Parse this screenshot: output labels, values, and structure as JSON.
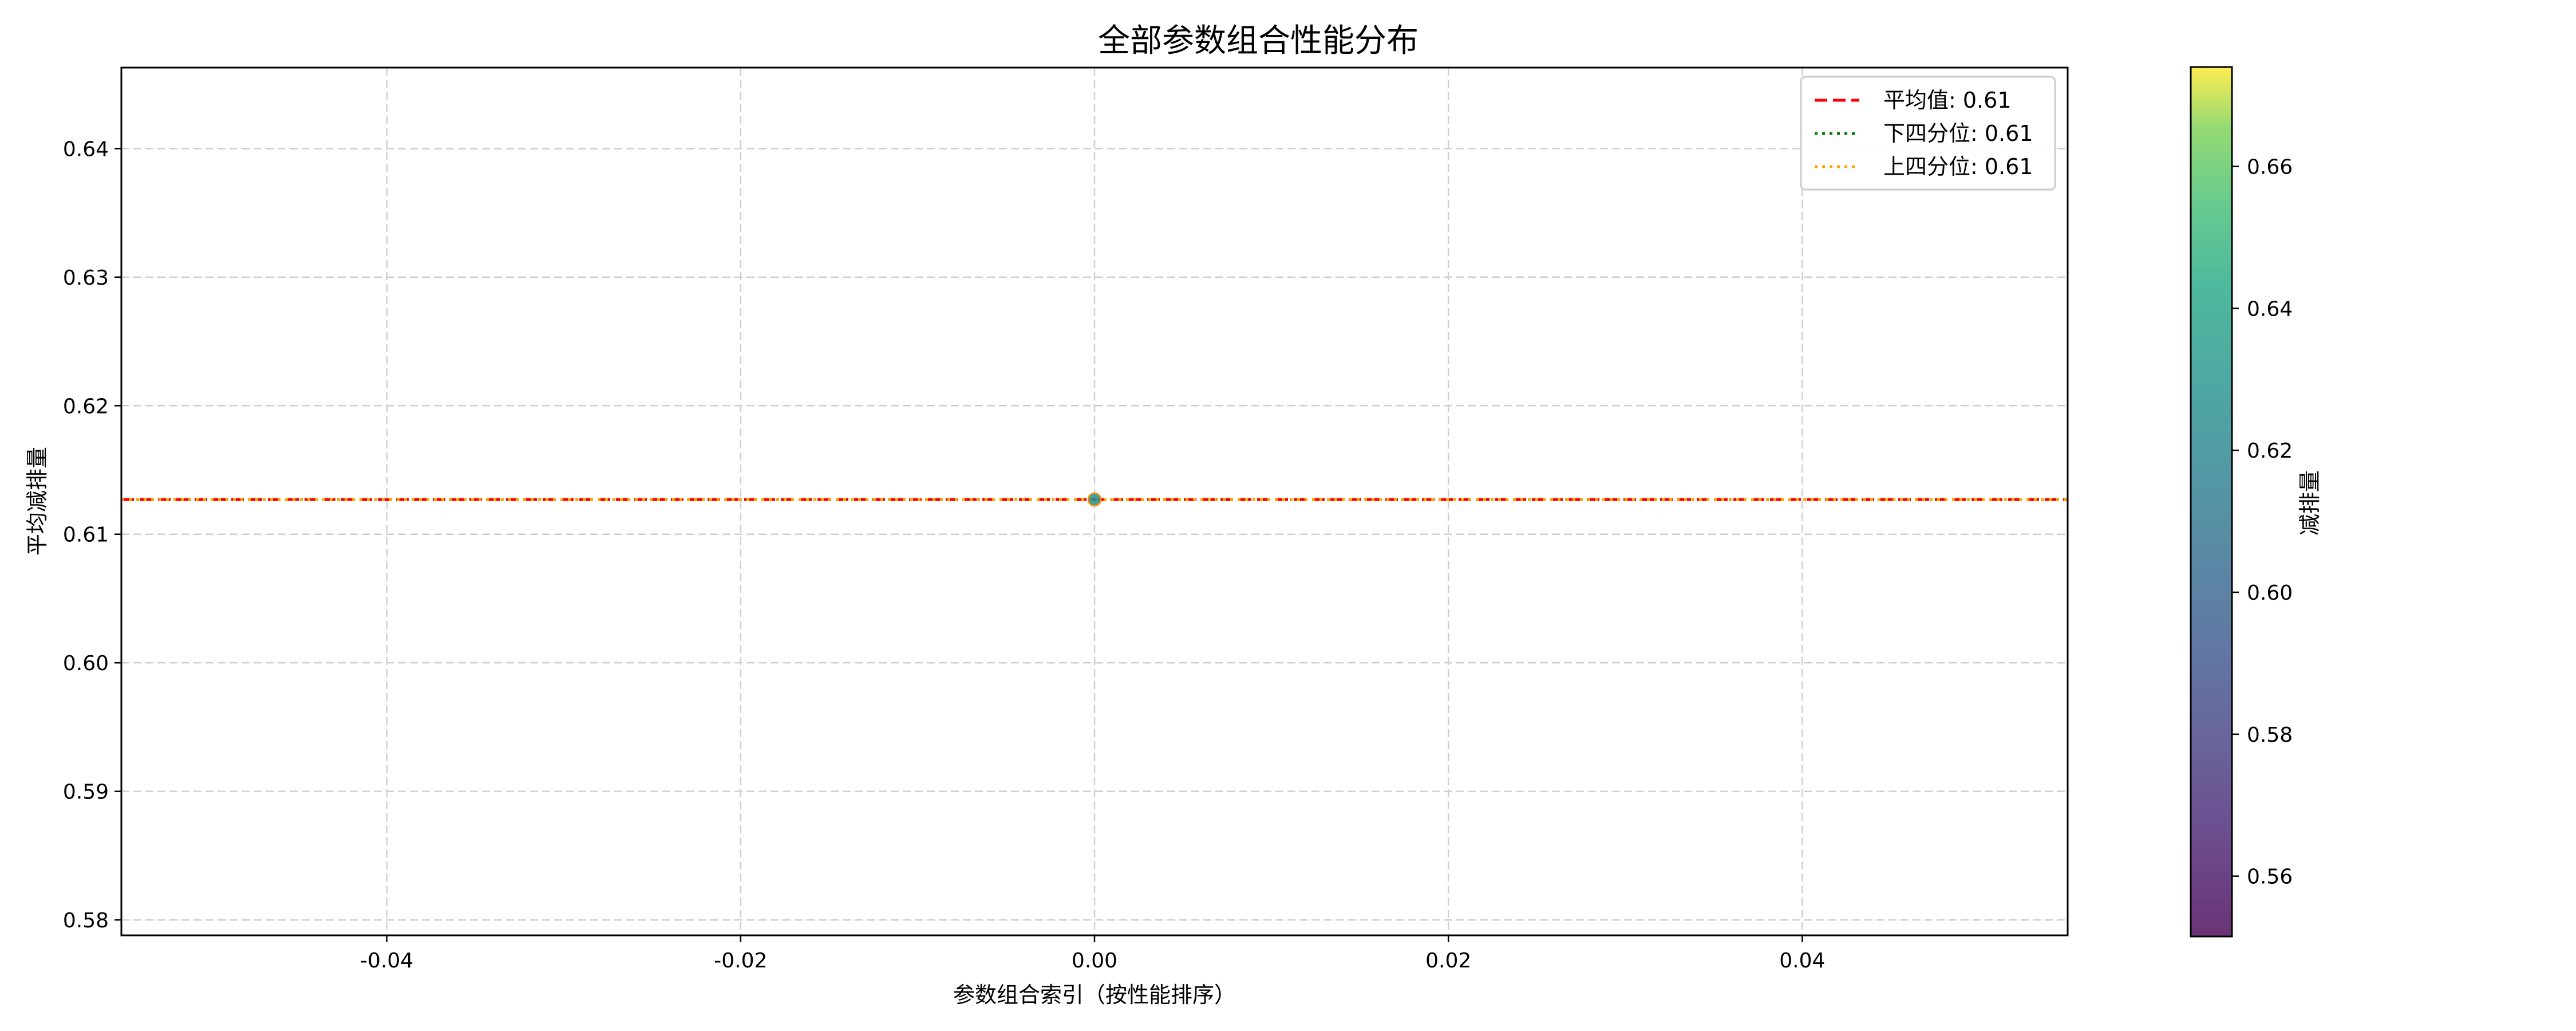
{
  "chart_data": {
    "type": "scatter",
    "title": "全部参数组合性能分布",
    "xlabel": "参数组合索引（按性能排序）",
    "ylabel": "平均减排量",
    "xlim": [
      -0.055,
      0.055
    ],
    "ylim": [
      0.5788,
      0.6463
    ],
    "x_ticks": [
      -0.04,
      -0.02,
      0.0,
      0.02,
      0.04
    ],
    "x_tick_labels": [
      "-0.04",
      "-0.02",
      "0.00",
      "0.02",
      "0.04"
    ],
    "y_ticks": [
      0.58,
      0.59,
      0.6,
      0.61,
      0.62,
      0.63,
      0.64
    ],
    "y_tick_labels": [
      "0.58",
      "0.59",
      "0.60",
      "0.61",
      "0.62",
      "0.63",
      "0.64"
    ],
    "grid": true,
    "points": [
      {
        "x": 0.0,
        "y": 0.6127,
        "c": 0.6127
      }
    ],
    "reference_lines": [
      {
        "label": "平均值: 0.61",
        "y": 0.6127,
        "color": "#ff0000",
        "style": "dashed"
      },
      {
        "label": "下四分位: 0.61",
        "y": 0.6127,
        "color": "#008000",
        "style": "dotted"
      },
      {
        "label": "上四分位: 0.61",
        "y": 0.6127,
        "color": "#ffa500",
        "style": "dotted"
      }
    ],
    "legend_position": "top-right",
    "colorbar": {
      "label": "减排量",
      "colormap": "viridis",
      "range": [
        0.5515,
        0.674
      ],
      "ticks": [
        0.56,
        0.58,
        0.6,
        0.62,
        0.64,
        0.66
      ],
      "tick_labels": [
        "0.56",
        "0.58",
        "0.60",
        "0.62",
        "0.64",
        "0.66"
      ]
    }
  }
}
